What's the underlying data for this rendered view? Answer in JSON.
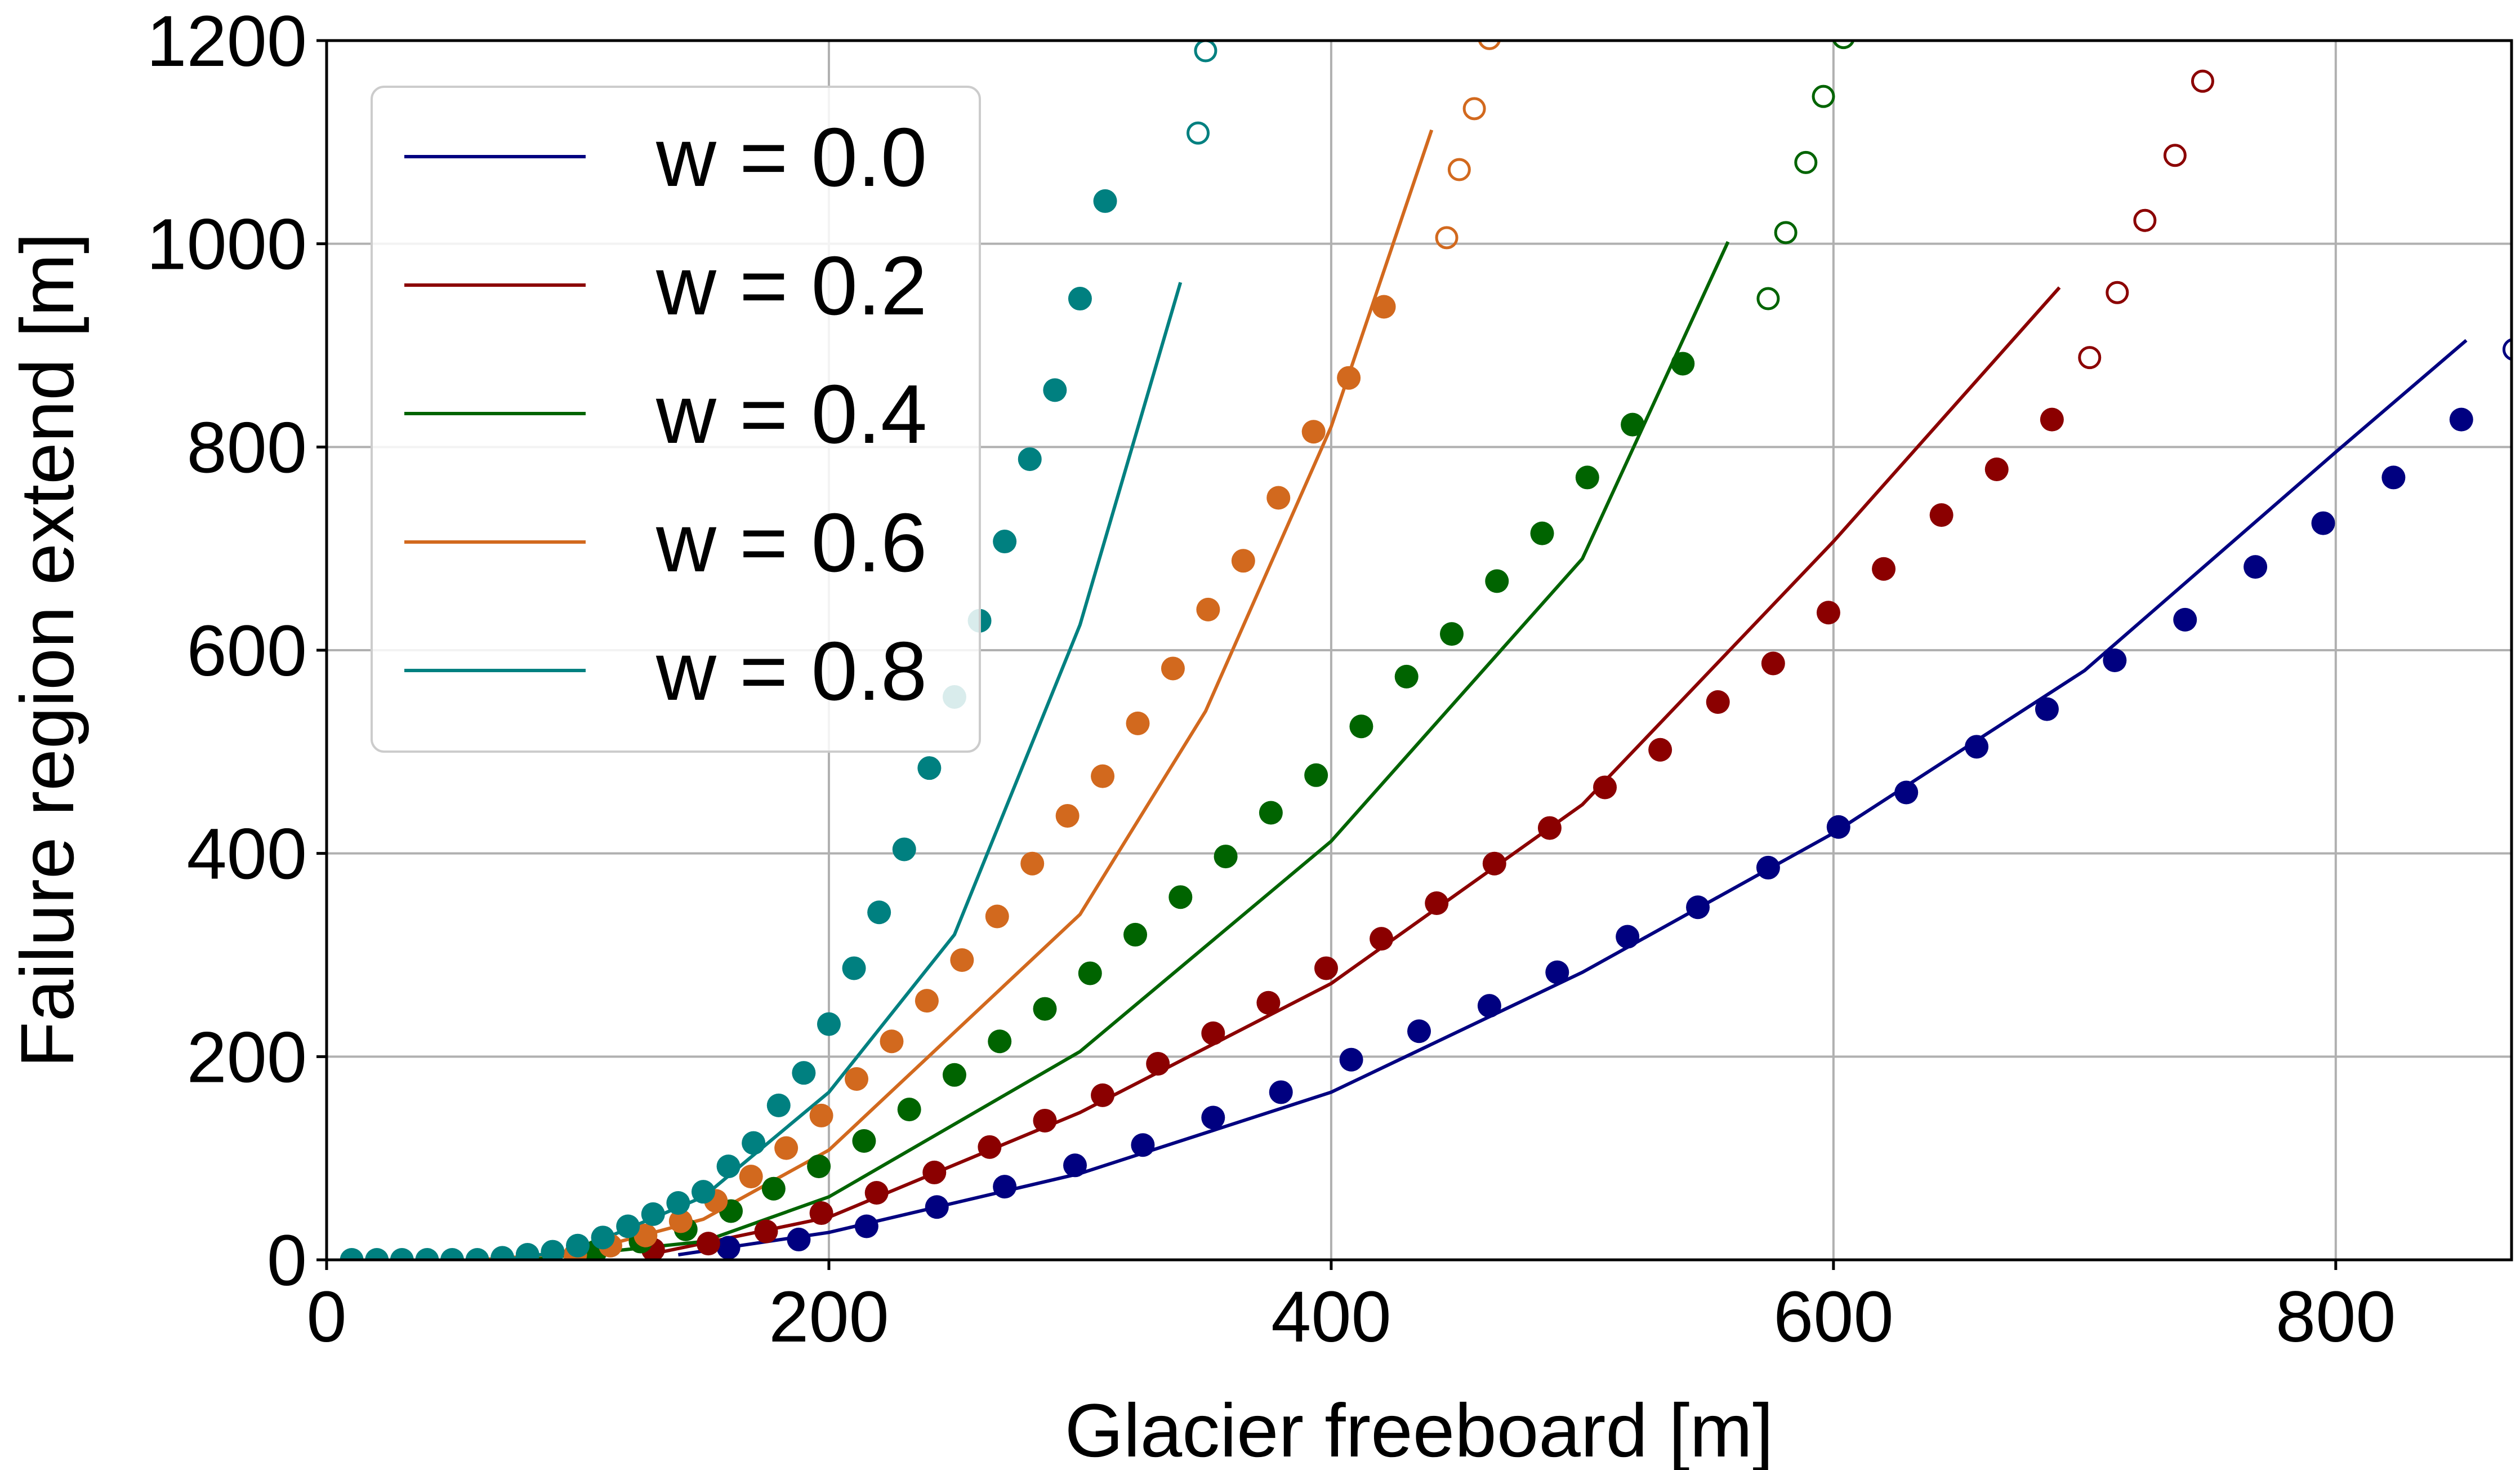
{
  "chart_data": {
    "type": "scatter",
    "title": "",
    "xlabel": "Glacier freeboard [m]",
    "ylabel": "Failure region extend [m]",
    "xlim": [
      0,
      870
    ],
    "ylim": [
      0,
      1200
    ],
    "xticks": [
      0,
      200,
      400,
      600,
      800
    ],
    "yticks": [
      0,
      200,
      400,
      600,
      800,
      1000,
      1200
    ],
    "grid": true,
    "legend_position": "top-left",
    "series": [
      {
        "name": "w = 0.0",
        "color": "#000080",
        "line": [
          [
            140,
            5
          ],
          [
            200,
            27
          ],
          [
            300,
            85
          ],
          [
            400,
            165
          ],
          [
            500,
            283
          ],
          [
            600,
            420
          ],
          [
            700,
            580
          ],
          [
            800,
            795
          ],
          [
            852,
            905
          ]
        ],
        "points_filled": [
          [
            160,
            12
          ],
          [
            188,
            20
          ],
          [
            215,
            33
          ],
          [
            243,
            52
          ],
          [
            270,
            72
          ],
          [
            298,
            93
          ],
          [
            325,
            113
          ],
          [
            353,
            140
          ],
          [
            380,
            165
          ],
          [
            408,
            197
          ],
          [
            435,
            225
          ],
          [
            463,
            250
          ],
          [
            490,
            283
          ],
          [
            518,
            318
          ],
          [
            546,
            347
          ],
          [
            574,
            386
          ],
          [
            602,
            426
          ],
          [
            629,
            460
          ],
          [
            657,
            505
          ],
          [
            685,
            542
          ],
          [
            712,
            590
          ],
          [
            740,
            630
          ],
          [
            768,
            682
          ],
          [
            795,
            725
          ],
          [
            823,
            770
          ],
          [
            850,
            827
          ]
        ],
        "points_open": [
          [
            871,
            896
          ]
        ]
      },
      {
        "name": "w = 0.2",
        "color": "#8b0000",
        "line": [
          [
            130,
            6
          ],
          [
            200,
            42
          ],
          [
            300,
            145
          ],
          [
            400,
            272
          ],
          [
            500,
            448
          ],
          [
            600,
            707
          ],
          [
            690,
            957
          ]
        ],
        "points_filled": [
          [
            130,
            10
          ],
          [
            152,
            16
          ],
          [
            175,
            28
          ],
          [
            197,
            46
          ],
          [
            219,
            66
          ],
          [
            242,
            86
          ],
          [
            264,
            111
          ],
          [
            286,
            137
          ],
          [
            309,
            162
          ],
          [
            331,
            193
          ],
          [
            353,
            223
          ],
          [
            375,
            253
          ],
          [
            398,
            287
          ],
          [
            420,
            316
          ],
          [
            442,
            351
          ],
          [
            465,
            390
          ],
          [
            487,
            425
          ],
          [
            509,
            465
          ],
          [
            531,
            502
          ],
          [
            554,
            549
          ],
          [
            576,
            587
          ],
          [
            598,
            637
          ],
          [
            620,
            680
          ],
          [
            643,
            733
          ],
          [
            665,
            778
          ],
          [
            687,
            827
          ]
        ],
        "points_open": [
          [
            702,
            888
          ],
          [
            713,
            952
          ],
          [
            724,
            1023
          ],
          [
            736,
            1087
          ],
          [
            747,
            1160
          ]
        ]
      },
      {
        "name": "w = 0.4",
        "color": "#006400",
        "line": [
          [
            80,
            0
          ],
          [
            150,
            18
          ],
          [
            200,
            62
          ],
          [
            300,
            205
          ],
          [
            400,
            412
          ],
          [
            500,
            690
          ],
          [
            558,
            1002
          ]
        ],
        "points_filled": [
          [
            107,
            8
          ],
          [
            125,
            18
          ],
          [
            143,
            30
          ],
          [
            161,
            48
          ],
          [
            178,
            70
          ],
          [
            196,
            92
          ],
          [
            214,
            117
          ],
          [
            232,
            148
          ],
          [
            250,
            182
          ],
          [
            268,
            215
          ],
          [
            286,
            247
          ],
          [
            304,
            282
          ],
          [
            322,
            320
          ],
          [
            340,
            357
          ],
          [
            358,
            397
          ],
          [
            376,
            440
          ],
          [
            394,
            477
          ],
          [
            412,
            525
          ],
          [
            430,
            574
          ],
          [
            448,
            616
          ],
          [
            466,
            668
          ],
          [
            484,
            715
          ],
          [
            502,
            770
          ],
          [
            520,
            822
          ],
          [
            540,
            882
          ]
        ],
        "points_open": [
          [
            574,
            946
          ],
          [
            581,
            1011
          ],
          [
            589,
            1080
          ],
          [
            596,
            1145
          ],
          [
            604,
            1203
          ]
        ]
      },
      {
        "name": "w = 0.6",
        "color": "#d2691e",
        "line": [
          [
            60,
            0
          ],
          [
            100,
            7
          ],
          [
            150,
            40
          ],
          [
            200,
            108
          ],
          [
            300,
            340
          ],
          [
            350,
            540
          ],
          [
            400,
            820
          ],
          [
            440,
            1112
          ]
        ],
        "points_filled": [
          [
            99,
            5
          ],
          [
            113,
            14
          ],
          [
            127,
            24
          ],
          [
            141,
            38
          ],
          [
            155,
            58
          ],
          [
            169,
            82
          ],
          [
            183,
            110
          ],
          [
            197,
            142
          ],
          [
            211,
            178
          ],
          [
            225,
            215
          ],
          [
            239,
            255
          ],
          [
            253,
            295
          ],
          [
            267,
            338
          ],
          [
            281,
            390
          ],
          [
            295,
            437
          ],
          [
            309,
            476
          ],
          [
            323,
            528
          ],
          [
            337,
            582
          ],
          [
            351,
            640
          ],
          [
            365,
            688
          ],
          [
            379,
            750
          ],
          [
            393,
            815
          ],
          [
            407,
            868
          ],
          [
            421,
            938
          ]
        ],
        "points_open": [
          [
            446,
            1006
          ],
          [
            451,
            1073
          ],
          [
            457,
            1133
          ],
          [
            463,
            1202
          ]
        ]
      },
      {
        "name": "w = 0.8",
        "color": "#008080",
        "line": [
          [
            70,
            0
          ],
          [
            100,
            10
          ],
          [
            150,
            62
          ],
          [
            200,
            165
          ],
          [
            250,
            320
          ],
          [
            300,
            625
          ],
          [
            340,
            962
          ]
        ],
        "points_filled": [
          [
            10,
            0
          ],
          [
            20,
            0
          ],
          [
            30,
            0
          ],
          [
            40,
            0
          ],
          [
            50,
            0
          ],
          [
            60,
            0
          ],
          [
            70,
            2
          ],
          [
            80,
            5
          ],
          [
            90,
            8
          ],
          [
            100,
            14
          ],
          [
            110,
            22
          ],
          [
            120,
            33
          ],
          [
            130,
            45
          ],
          [
            140,
            56
          ],
          [
            150,
            67
          ],
          [
            160,
            92
          ],
          [
            170,
            115
          ],
          [
            180,
            152
          ],
          [
            190,
            184
          ],
          [
            200,
            232
          ],
          [
            210,
            287
          ],
          [
            220,
            342
          ],
          [
            230,
            404
          ],
          [
            240,
            484
          ],
          [
            250,
            554
          ],
          [
            260,
            629
          ],
          [
            270,
            707
          ],
          [
            280,
            788
          ],
          [
            290,
            856
          ],
          [
            300,
            946
          ],
          [
            310,
            1042
          ]
        ],
        "points_open": [
          [
            347,
            1109
          ],
          [
            350,
            1190
          ]
        ]
      }
    ]
  }
}
